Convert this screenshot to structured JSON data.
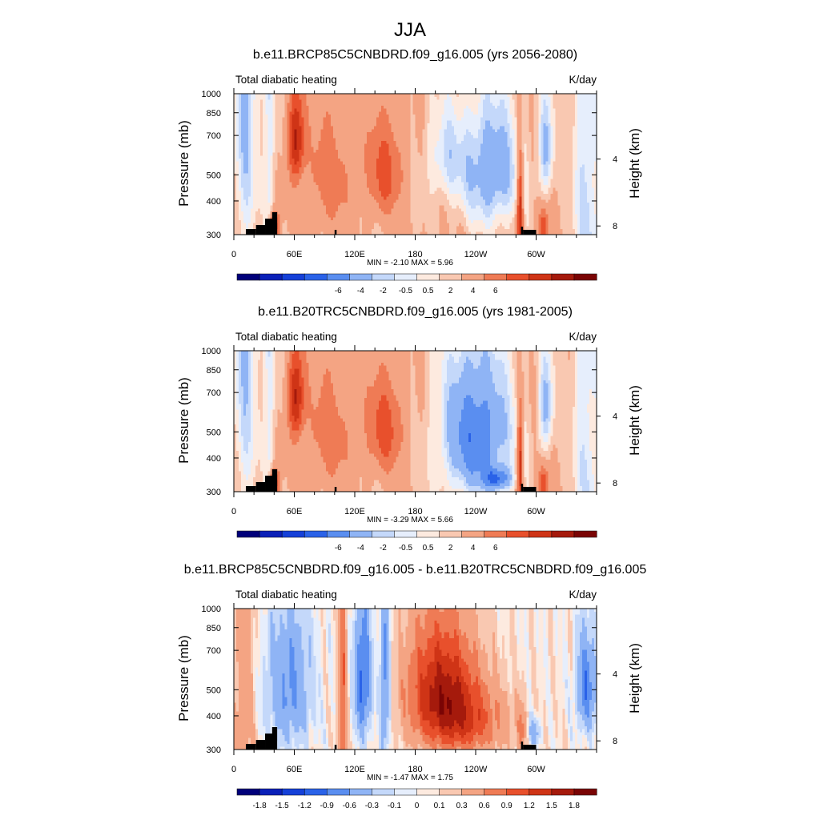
{
  "figure": {
    "title": "JJA"
  },
  "colormap": {
    "ten": [
      "#00007a",
      "#0a20b8",
      "#1540d8",
      "#2a62e8",
      "#5a8ef0",
      "#8fb4f5",
      "#c4d8fa",
      "#e6eefc",
      "#fdeadf",
      "#f9c8b1",
      "#f4a483",
      "#ef7b55",
      "#e8502c",
      "#cf3416",
      "#a51a0c",
      "#7a0404"
    ]
  },
  "chart_data": [
    {
      "type": "heatmap",
      "title": "b.e11.BRCP85C5CNBDRD.f09_g16.005 (yrs 2056-2080)",
      "left_label": "Total diabatic heating",
      "right_label": "K/day",
      "ylabel": "Pressure (mb)",
      "ylabel_right": "Height (km)",
      "y_ticks": [
        "300",
        "400",
        "500",
        "700",
        "850",
        "1000"
      ],
      "y_tick_values": [
        300,
        400,
        500,
        700,
        850,
        1000
      ],
      "right_ticks": [
        "8",
        "4"
      ],
      "right_tick_values": [
        8,
        4
      ],
      "x_ticks": [
        "0",
        "60E",
        "120E",
        "180",
        "120W",
        "60W"
      ],
      "x_tick_values": [
        0,
        60,
        120,
        180,
        240,
        300
      ],
      "xlim": [
        0,
        360
      ],
      "ylim": [
        1000,
        300
      ],
      "stats": "MIN =  -2.10  MAX =   5.96",
      "min": -2.1,
      "max": 5.96,
      "colorbar_labels": [
        "-6",
        "-4",
        "-2",
        "-0.5",
        "0.5",
        "2",
        "4",
        "6"
      ],
      "levels": [
        -7,
        -6,
        -5,
        -4,
        -3,
        -2,
        -1,
        -0.5,
        0,
        0.5,
        1,
        2,
        3,
        4,
        5,
        6,
        7
      ],
      "field": "future"
    },
    {
      "type": "heatmap",
      "title": "b.e11.B20TRC5CNBDRD.f09_g16.005 (yrs 1981-2005)",
      "left_label": "Total diabatic heating",
      "right_label": "K/day",
      "ylabel": "Pressure (mb)",
      "ylabel_right": "Height (km)",
      "y_ticks": [
        "300",
        "400",
        "500",
        "700",
        "850",
        "1000"
      ],
      "y_tick_values": [
        300,
        400,
        500,
        700,
        850,
        1000
      ],
      "right_ticks": [
        "8",
        "4"
      ],
      "right_tick_values": [
        8,
        4
      ],
      "x_ticks": [
        "0",
        "60E",
        "120E",
        "180",
        "120W",
        "60W"
      ],
      "x_tick_values": [
        0,
        60,
        120,
        180,
        240,
        300
      ],
      "xlim": [
        0,
        360
      ],
      "ylim": [
        1000,
        300
      ],
      "stats": "MIN =  -3.29  MAX =   5.66",
      "min": -3.29,
      "max": 5.66,
      "colorbar_labels": [
        "-6",
        "-4",
        "-2",
        "-0.5",
        "0.5",
        "2",
        "4",
        "6"
      ],
      "levels": [
        -7,
        -6,
        -5,
        -4,
        -3,
        -2,
        -1,
        -0.5,
        0,
        0.5,
        1,
        2,
        3,
        4,
        5,
        6,
        7
      ],
      "field": "historical"
    },
    {
      "type": "heatmap",
      "title": "b.e11.BRCP85C5CNBDRD.f09_g16.005 - b.e11.B20TRC5CNBDRD.f09_g16.005",
      "left_label": "Total diabatic heating",
      "right_label": "K/day",
      "ylabel": "Pressure (mb)",
      "ylabel_right": "Height (km)",
      "y_ticks": [
        "300",
        "400",
        "500",
        "700",
        "850",
        "1000"
      ],
      "y_tick_values": [
        300,
        400,
        500,
        700,
        850,
        1000
      ],
      "right_ticks": [
        "8",
        "4"
      ],
      "right_tick_values": [
        8,
        4
      ],
      "x_ticks": [
        "0",
        "60E",
        "120E",
        "180",
        "120W",
        "60W"
      ],
      "x_tick_values": [
        0,
        60,
        120,
        180,
        240,
        300
      ],
      "xlim": [
        0,
        360
      ],
      "ylim": [
        1000,
        300
      ],
      "stats": "MIN =  -1.47  MAX =   1.75",
      "min": -1.47,
      "max": 1.75,
      "colorbar_labels": [
        "-1.8",
        "-1.5",
        "-1.2",
        "-0.9",
        "-0.6",
        "-0.3",
        "-0.1",
        "0",
        "0.1",
        "0.3",
        "0.6",
        "0.9",
        "1.2",
        "1.5",
        "1.8"
      ],
      "levels": [
        -2.1,
        -1.8,
        -1.5,
        -1.2,
        -0.9,
        -0.6,
        -0.3,
        -0.1,
        0,
        0.1,
        0.3,
        0.6,
        0.9,
        1.2,
        1.5,
        1.8,
        2.1
      ],
      "field": "difference"
    }
  ]
}
